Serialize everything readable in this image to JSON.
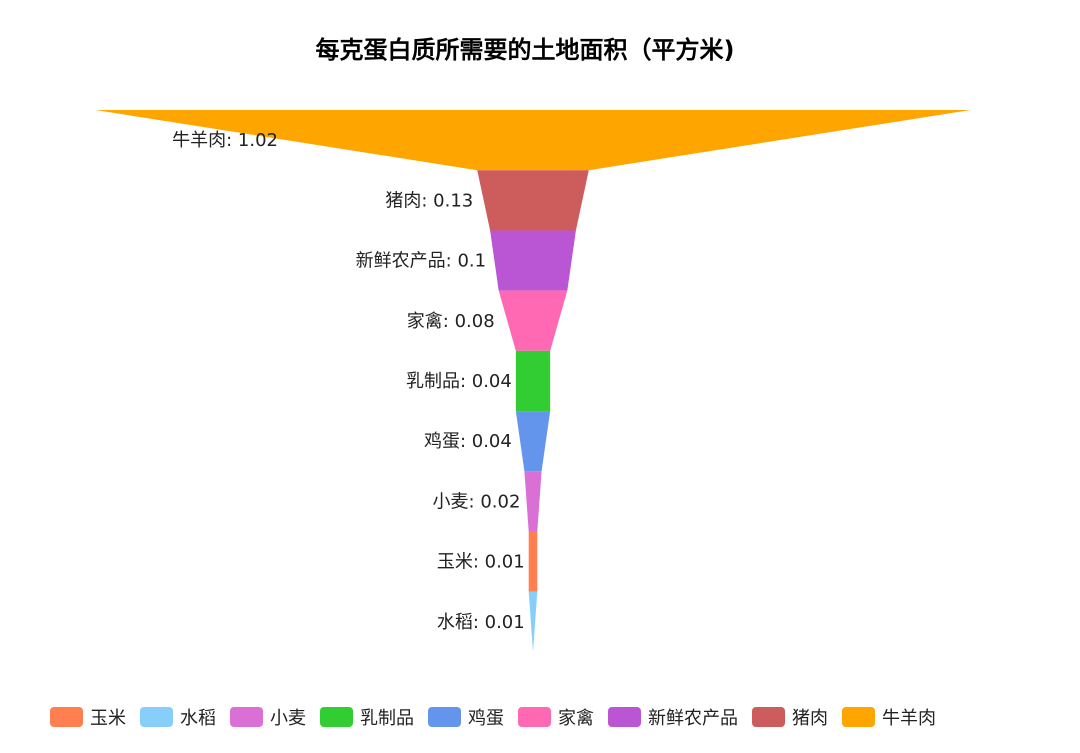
{
  "chart_data": {
    "type": "funnel",
    "title": "每克蛋白质所需要的土地面积（平方米)",
    "series": [
      {
        "values": [
          {
            "name": "牛羊肉",
            "value": 1.02,
            "color": "#FFA500"
          },
          {
            "name": "猪肉",
            "value": 0.13,
            "color": "#CD5C5C"
          },
          {
            "name": "新鲜农产品",
            "value": 0.1,
            "color": "#BA55D3"
          },
          {
            "name": "家禽",
            "value": 0.08,
            "color": "#FF69B4"
          },
          {
            "name": "乳制品",
            "value": 0.04,
            "color": "#32CD32"
          },
          {
            "name": "鸡蛋",
            "value": 0.04,
            "color": "#6495ED"
          },
          {
            "name": "小麦",
            "value": 0.02,
            "color": "#DA70D6"
          },
          {
            "name": "玉米",
            "value": 0.01,
            "color": "#FF7F50"
          },
          {
            "name": "水稻",
            "value": 0.01,
            "color": "#87CEFA"
          }
        ]
      }
    ],
    "legend": {
      "position": "bottom",
      "items": [
        "玉米",
        "水稻",
        "小麦",
        "乳制品",
        "鸡蛋",
        "家禽",
        "新鲜农产品",
        "猪肉",
        "牛羊肉"
      ]
    }
  }
}
